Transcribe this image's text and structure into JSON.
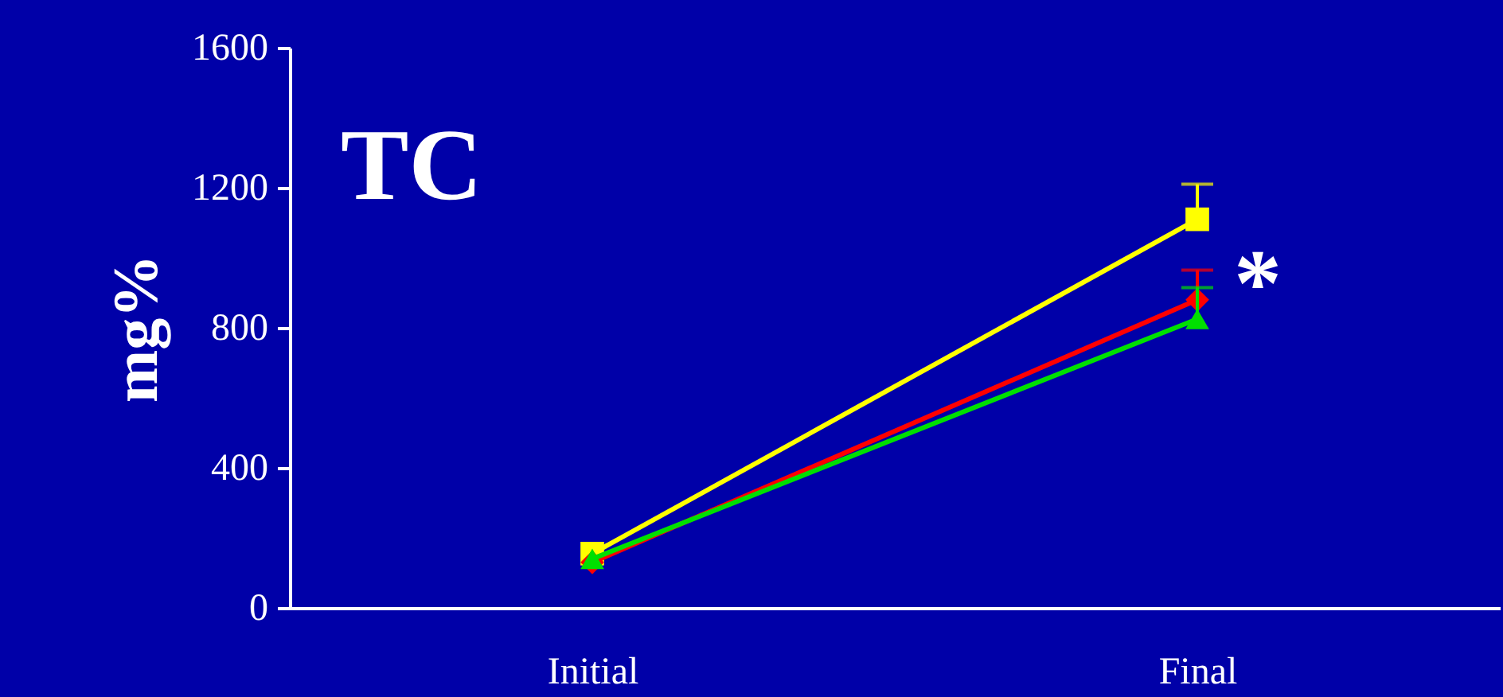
{
  "chart_data": {
    "type": "line",
    "title": "TC",
    "ylabel": "mg%",
    "categories": [
      "Initial",
      "Final"
    ],
    "series": [
      {
        "color": "#ffff00",
        "values": [
          155,
          1110
        ],
        "errors": [
          null,
          [
            1110,
            1210
          ]
        ],
        "marker": "square"
      },
      {
        "color": "#ff0000",
        "values": [
          130,
          880
        ],
        "errors": [
          null,
          [
            880,
            965
          ]
        ],
        "marker": "diamond"
      },
      {
        "color": "#00e000",
        "values": [
          140,
          825
        ],
        "errors": [
          null,
          [
            825,
            915
          ]
        ],
        "marker": "triangle"
      }
    ],
    "annotations": [
      "*"
    ],
    "ylim": [
      0,
      1600
    ],
    "yticks": [
      0,
      400,
      800,
      1200,
      1600
    ],
    "grid": false
  }
}
